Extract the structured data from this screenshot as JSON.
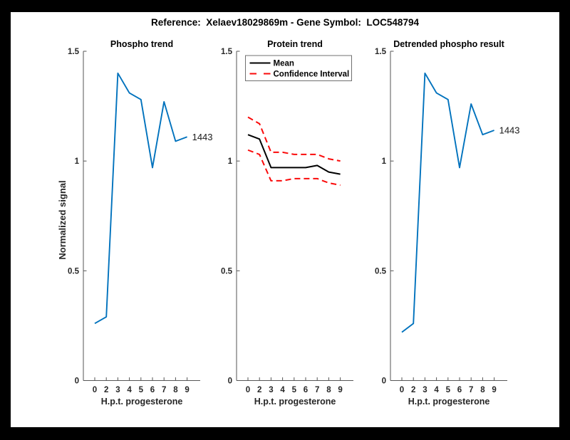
{
  "figure": {
    "title": "Reference:  Xelaev18029869m - Gene Symbol:  LOC548794"
  },
  "colors": {
    "blue": "#0072BD",
    "red": "#FA0A0A",
    "black": "#000000",
    "axis": "#565656",
    "tick_label": "#262626",
    "annotation": "#1a1a1a",
    "legend_border": "#707070"
  },
  "chart_data": [
    {
      "type": "line",
      "title": "Phospho trend",
      "xlabel": "H.p.t. progesterone",
      "ylabel": "Normalized signal",
      "x_ticklabels": [
        "0",
        "2",
        "3",
        "4",
        "5",
        "6",
        "7",
        "8",
        "9"
      ],
      "yticks": [
        {
          "value": 0,
          "label": "0"
        },
        {
          "value": 0.5,
          "label": "0.5"
        },
        {
          "value": 1,
          "label": "1"
        },
        {
          "value": 1.5,
          "label": "1.5"
        }
      ],
      "ylim": [
        0,
        1.5
      ],
      "series": [
        {
          "name": "phospho-signal",
          "color_key": "blue",
          "dash": "solid",
          "values": [
            0.26,
            0.29,
            1.4,
            1.31,
            1.28,
            0.97,
            1.27,
            1.09,
            1.11
          ]
        }
      ],
      "end_label": "1443",
      "legend": null
    },
    {
      "type": "line",
      "title": "Protein trend",
      "xlabel": "H.p.t. progesterone",
      "ylabel": null,
      "x_ticklabels": [
        "0",
        "2",
        "3",
        "4",
        "5",
        "6",
        "7",
        "8",
        "9"
      ],
      "yticks": [
        {
          "value": 0,
          "label": "0"
        },
        {
          "value": 0.5,
          "label": "0.5"
        },
        {
          "value": 1,
          "label": "1"
        },
        {
          "value": 1.5,
          "label": "1.5"
        }
      ],
      "ylim": [
        0,
        1.5
      ],
      "series": [
        {
          "name": "mean",
          "color_key": "black",
          "dash": "solid",
          "values": [
            1.12,
            1.1,
            0.97,
            0.97,
            0.97,
            0.97,
            0.98,
            0.95,
            0.94
          ]
        },
        {
          "name": "confidence-upper",
          "color_key": "red",
          "dash": "dashed",
          "values": [
            1.2,
            1.17,
            1.04,
            1.04,
            1.03,
            1.03,
            1.03,
            1.01,
            1.0
          ]
        },
        {
          "name": "confidence-lower",
          "color_key": "red",
          "dash": "dashed",
          "values": [
            1.05,
            1.03,
            0.91,
            0.91,
            0.92,
            0.92,
            0.92,
            0.9,
            0.89
          ]
        }
      ],
      "end_label": null,
      "legend": {
        "entries": [
          {
            "label": "Mean",
            "color_key": "black",
            "dash": "solid"
          },
          {
            "label": "Confidence Interval",
            "color_key": "red",
            "dash": "dashed"
          }
        ]
      }
    },
    {
      "type": "line",
      "title": "Detrended phospho result",
      "xlabel": "H.p.t. progesterone",
      "ylabel": null,
      "x_ticklabels": [
        "0",
        "2",
        "3",
        "4",
        "5",
        "6",
        "7",
        "8",
        "9"
      ],
      "yticks": [
        {
          "value": 0,
          "label": "0"
        },
        {
          "value": 0.5,
          "label": "0.5"
        },
        {
          "value": 1,
          "label": "1"
        },
        {
          "value": 1.5,
          "label": "1.5"
        }
      ],
      "ylim": [
        0,
        1.5
      ],
      "series": [
        {
          "name": "detrended-signal",
          "color_key": "blue",
          "dash": "solid",
          "values": [
            0.22,
            0.26,
            1.4,
            1.31,
            1.28,
            0.97,
            1.26,
            1.12,
            1.14
          ]
        }
      ],
      "end_label": "1443",
      "legend": null
    }
  ]
}
